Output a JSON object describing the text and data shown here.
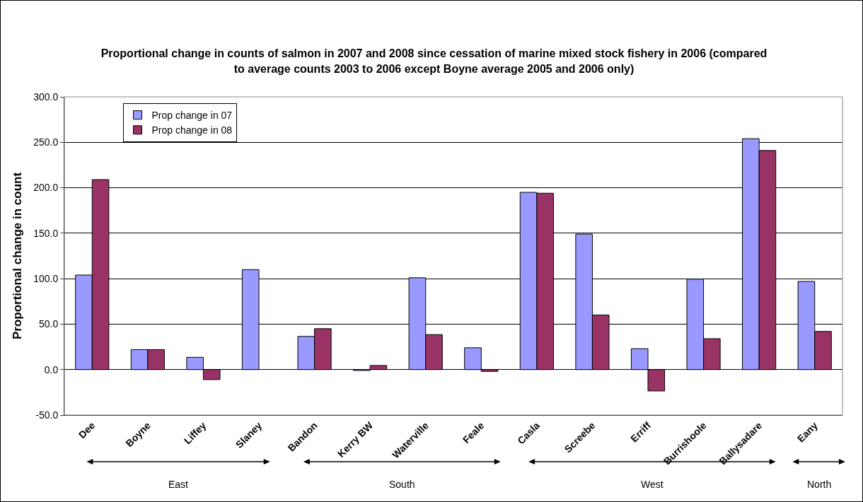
{
  "chart_data": {
    "type": "bar",
    "title": "Proportional change in counts of salmon in 2007 and 2008 since cessation of marine mixed stock  fishery in 2006 (compared to average counts 2003 to 2006 except Boyne average 2005 and 2006 only)",
    "ylabel": "Proportional change in count",
    "categories": [
      "Dee",
      "Boyne",
      "Liffey",
      "Slaney",
      "Bandon",
      "Kerry BW",
      "Waterville",
      "Feale",
      "Casla",
      "Screebe",
      "Erriff",
      "Burrishoole",
      "Ballysadare",
      "Eany"
    ],
    "series": [
      {
        "name": "Prop change in 07",
        "color": "#9999ff",
        "values": [
          104,
          22,
          13.5,
          110,
          36.5,
          -1,
          101,
          24,
          195,
          149,
          23,
          99.5,
          254,
          97
        ]
      },
      {
        "name": "Prop change in 08",
        "color": "#993366",
        "values": [
          209,
          22,
          -11,
          null,
          45,
          4.5,
          38.5,
          -2,
          194,
          60,
          -23.5,
          34,
          241,
          42
        ]
      }
    ],
    "annotations": [
      "East",
      "South",
      "West",
      "North"
    ],
    "ylim": [
      -50,
      300
    ],
    "yticks": [
      {
        "value": -50,
        "label": "-50.0"
      },
      {
        "value": 0,
        "label": "0.0"
      },
      {
        "value": 50,
        "label": "50.0"
      },
      {
        "value": 100,
        "label": "100.0"
      },
      {
        "value": 150,
        "label": "150.0"
      },
      {
        "value": 200,
        "label": "200.0"
      },
      {
        "value": 250,
        "label": "250.0"
      },
      {
        "value": 300,
        "label": "300.0"
      }
    ],
    "grid": "y",
    "legend": "top left"
  }
}
